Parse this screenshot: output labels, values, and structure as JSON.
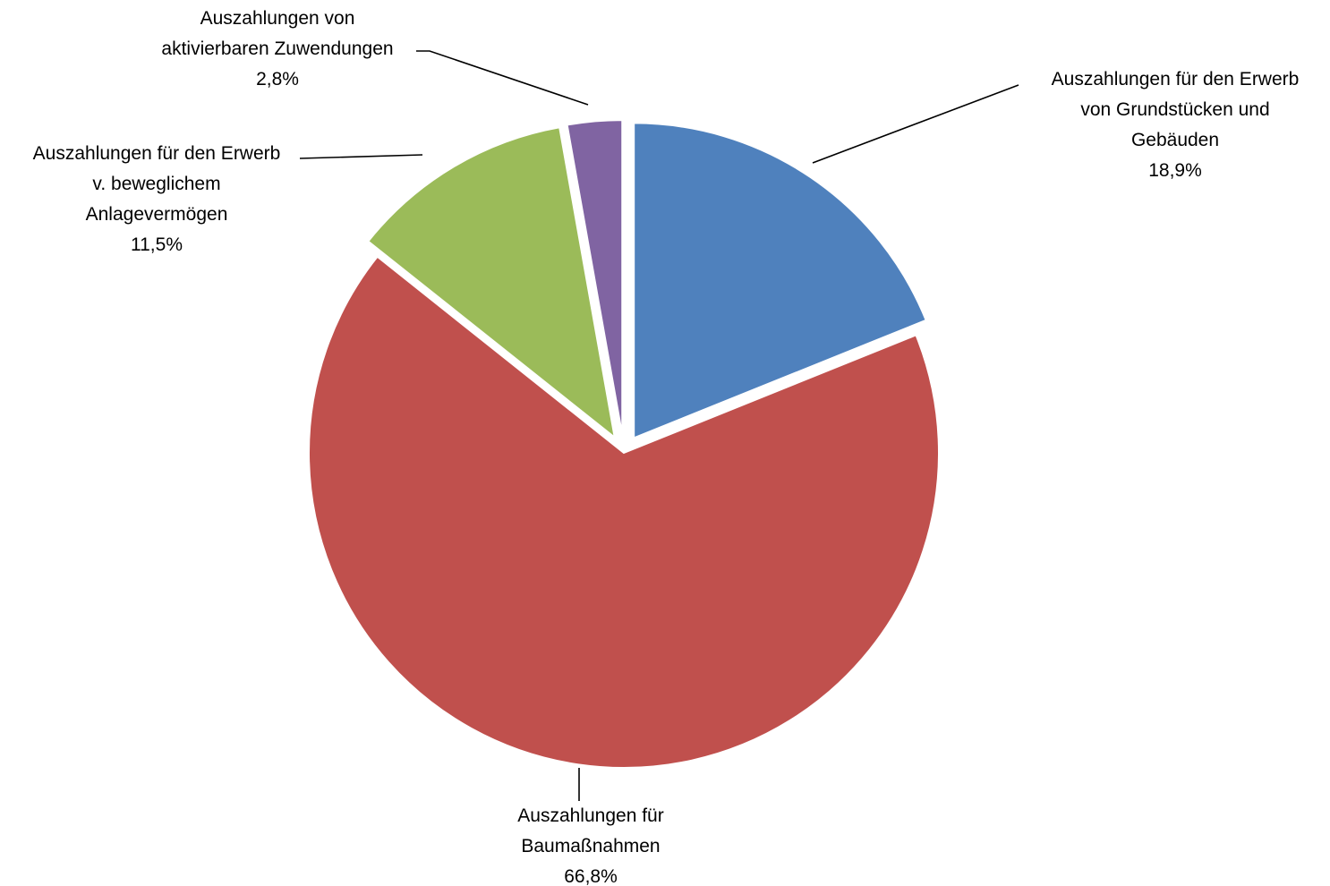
{
  "chart_data": {
    "type": "pie",
    "title": "",
    "start_angle_deg": 0,
    "direction": "clockwise",
    "slices": [
      {
        "label_lines": [
          "Auszahlungen für den Erwerb",
          "von Grundstücken und",
          "Gebäuden"
        ],
        "value": 18.9,
        "value_label": "18,9%",
        "color": "#4F81BD",
        "exploded": true
      },
      {
        "label_lines": [
          "Auszahlungen für",
          "Baumaßnahmen"
        ],
        "value": 66.8,
        "value_label": "66,8%",
        "color": "#C0504D",
        "exploded": false
      },
      {
        "label_lines": [
          "Auszahlungen für den Erwerb",
          "v. beweglichem",
          "Anlagevermögen"
        ],
        "value": 11.5,
        "value_label": "11,5%",
        "color": "#9BBB59",
        "exploded": true
      },
      {
        "label_lines": [
          "Auszahlungen von",
          "aktivierbaren Zuwendungen"
        ],
        "value": 2.8,
        "value_label": "2,8%",
        "color": "#8064A2",
        "exploded": true
      }
    ]
  }
}
